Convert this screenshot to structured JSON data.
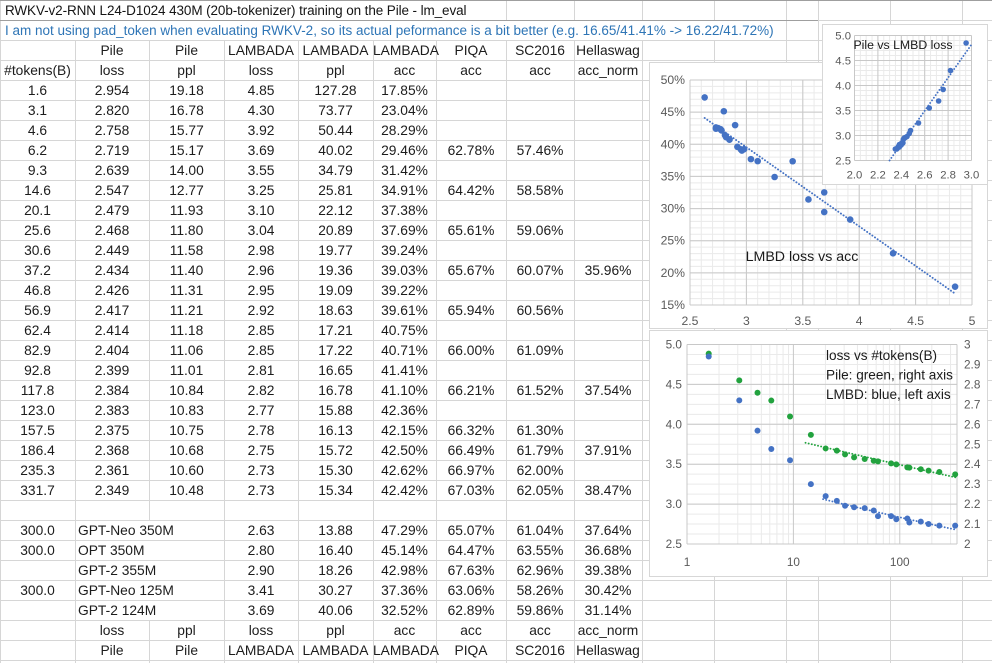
{
  "sheet": {
    "title": "RWKV-v2-RNN L24-D1024 430M (20b-tokenizer) training on the Pile - lm_eval",
    "comment": "I am not using pad_token when evaluating RWKV-2, so its actual peformance is a bit better (e.g. 16.65/41.41% -> 16.22/41.72%)",
    "header_row1": [
      "",
      "Pile",
      "Pile",
      "LAMBADA",
      "LAMBADA",
      "LAMBADA",
      "PIQA",
      "SC2016",
      "Hellaswag"
    ],
    "header_row2": [
      "#tokens(B)",
      "loss",
      "ppl",
      "loss",
      "ppl",
      "acc",
      "acc",
      "acc",
      "acc_norm"
    ],
    "rwkv_rows": [
      [
        "1.6",
        "2.954",
        "19.18",
        "4.85",
        "127.28",
        "17.85%",
        "",
        "",
        ""
      ],
      [
        "3.1",
        "2.820",
        "16.78",
        "4.30",
        "73.77",
        "23.04%",
        "",
        "",
        ""
      ],
      [
        "4.6",
        "2.758",
        "15.77",
        "3.92",
        "50.44",
        "28.29%",
        "",
        "",
        ""
      ],
      [
        "6.2",
        "2.719",
        "15.17",
        "3.69",
        "40.02",
        "29.46%",
        "62.78%",
        "57.46%",
        ""
      ],
      [
        "9.3",
        "2.639",
        "14.00",
        "3.55",
        "34.79",
        "31.42%",
        "",
        "",
        ""
      ],
      [
        "14.6",
        "2.547",
        "12.77",
        "3.25",
        "25.81",
        "34.91%",
        "64.42%",
        "58.58%",
        ""
      ],
      [
        "20.1",
        "2.479",
        "11.93",
        "3.10",
        "22.12",
        "37.38%",
        "",
        "",
        ""
      ],
      [
        "25.6",
        "2.468",
        "11.80",
        "3.04",
        "20.89",
        "37.69%",
        "65.61%",
        "59.06%",
        ""
      ],
      [
        "30.6",
        "2.449",
        "11.58",
        "2.98",
        "19.77",
        "39.24%",
        "",
        "",
        ""
      ],
      [
        "37.2",
        "2.434",
        "11.40",
        "2.96",
        "19.36",
        "39.03%",
        "65.67%",
        "60.07%",
        "35.96%"
      ],
      [
        "46.8",
        "2.426",
        "11.31",
        "2.95",
        "19.09",
        "39.22%",
        "",
        "",
        ""
      ],
      [
        "56.9",
        "2.417",
        "11.21",
        "2.92",
        "18.63",
        "39.61%",
        "65.94%",
        "60.56%",
        ""
      ],
      [
        "62.4",
        "2.414",
        "11.18",
        "2.85",
        "17.21",
        "40.75%",
        "",
        "",
        ""
      ],
      [
        "82.9",
        "2.404",
        "11.06",
        "2.85",
        "17.22",
        "40.71%",
        "66.00%",
        "61.09%",
        ""
      ],
      [
        "92.8",
        "2.399",
        "11.01",
        "2.81",
        "16.65",
        "41.41%",
        "",
        "",
        ""
      ],
      [
        "117.8",
        "2.384",
        "10.84",
        "2.82",
        "16.78",
        "41.10%",
        "66.21%",
        "61.52%",
        "37.54%"
      ],
      [
        "123.0",
        "2.383",
        "10.83",
        "2.77",
        "15.88",
        "42.36%",
        "",
        "",
        ""
      ],
      [
        "157.5",
        "2.375",
        "10.75",
        "2.78",
        "16.13",
        "42.15%",
        "66.32%",
        "61.30%",
        ""
      ],
      [
        "186.4",
        "2.368",
        "10.68",
        "2.75",
        "15.72",
        "42.50%",
        "66.49%",
        "61.79%",
        "37.91%"
      ],
      [
        "235.3",
        "2.361",
        "10.60",
        "2.73",
        "15.30",
        "42.62%",
        "66.97%",
        "62.00%",
        ""
      ],
      [
        "331.7",
        "2.349",
        "10.48",
        "2.73",
        "15.34",
        "42.42%",
        "67.03%",
        "62.05%",
        "38.47%"
      ]
    ],
    "baseline_rows": [
      [
        "300.0",
        "GPT-Neo 350M",
        "",
        "2.63",
        "13.88",
        "47.29%",
        "65.07%",
        "61.04%",
        "37.64%"
      ],
      [
        "300.0",
        "OPT 350M",
        "",
        "2.80",
        "16.40",
        "45.14%",
        "64.47%",
        "63.55%",
        "36.68%"
      ],
      [
        "",
        "GPT-2 355M",
        "",
        "2.90",
        "18.26",
        "42.98%",
        "67.63%",
        "62.96%",
        "39.38%"
      ],
      [
        "300.0",
        "GPT-Neo 125M",
        "",
        "3.41",
        "30.27",
        "37.36%",
        "63.06%",
        "58.26%",
        "30.42%"
      ],
      [
        "",
        "GPT-2 124M",
        "",
        "3.69",
        "40.06",
        "32.52%",
        "62.89%",
        "59.86%",
        "31.14%"
      ]
    ],
    "footer_row1": [
      "",
      "loss",
      "ppl",
      "loss",
      "ppl",
      "acc",
      "acc",
      "acc",
      "acc_norm"
    ],
    "footer_row2": [
      "",
      "Pile",
      "Pile",
      "LAMBADA",
      "LAMBADA",
      "LAMBADA",
      "PIQA",
      "SC2016",
      "Hellaswag"
    ]
  },
  "colors": {
    "comment_blue": "#2e75b6",
    "series_blue": "#4472c4",
    "series_green": "#22a23e",
    "axis_label_gray": "#595959"
  },
  "chart_data": [
    {
      "id": "pile-vs-lmbd-loss",
      "type": "scatter",
      "title": "Pile vs LMBD loss",
      "x_label_values": [
        2.954,
        2.82,
        2.758,
        2.719,
        2.639,
        2.547,
        2.479,
        2.468,
        2.449,
        2.434,
        2.426,
        2.417,
        2.414,
        2.404,
        2.399,
        2.384,
        2.383,
        2.375,
        2.368,
        2.361,
        2.349
      ],
      "y_label_values": [
        4.85,
        4.3,
        3.92,
        3.69,
        3.55,
        3.25,
        3.1,
        3.04,
        2.98,
        2.96,
        2.95,
        2.92,
        2.85,
        2.85,
        2.81,
        2.82,
        2.77,
        2.78,
        2.75,
        2.73,
        2.73
      ],
      "xlim": [
        2.0,
        3.0
      ],
      "ylim": [
        2.5,
        5.0
      ],
      "x_ticks": [
        {
          "v": 2.0,
          "t": "2.0"
        },
        {
          "v": 2.2,
          "t": "2.2"
        },
        {
          "v": 2.4,
          "t": "2.4"
        },
        {
          "v": 2.6,
          "t": "2.6"
        },
        {
          "v": 2.8,
          "t": "2.8"
        },
        {
          "v": 3.0,
          "t": "3.0"
        }
      ],
      "y_ticks": [
        {
          "v": 2.5,
          "t": "2.5"
        },
        {
          "v": 3.0,
          "t": "3.0"
        },
        {
          "v": 3.5,
          "t": "3.5"
        },
        {
          "v": 4.0,
          "t": "4.0"
        },
        {
          "v": 4.5,
          "t": "4.5"
        },
        {
          "v": 5.0,
          "t": "5.0"
        }
      ],
      "trendline": {
        "kind": "linear",
        "x_range": [
          2.0,
          3.0
        ],
        "style": "dotted"
      }
    },
    {
      "id": "lmbd-loss-vs-acc",
      "type": "scatter",
      "title": "LMBD loss vs acc",
      "x_label_values": [
        4.85,
        4.3,
        3.92,
        3.69,
        3.55,
        3.25,
        3.1,
        3.04,
        2.98,
        2.96,
        2.95,
        2.92,
        2.85,
        2.85,
        2.81,
        2.82,
        2.77,
        2.78,
        2.75,
        2.73,
        2.73,
        2.63,
        2.8,
        2.9,
        3.41,
        3.69
      ],
      "y_label_values": [
        17.85,
        23.04,
        28.29,
        29.46,
        31.42,
        34.91,
        37.38,
        37.69,
        39.24,
        39.03,
        39.22,
        39.61,
        40.75,
        40.71,
        41.41,
        41.1,
        42.36,
        42.15,
        42.5,
        42.62,
        42.42,
        47.29,
        45.14,
        42.98,
        37.36,
        32.52
      ],
      "xlim": [
        2.5,
        5.0
      ],
      "ylim": [
        15,
        50
      ],
      "x_ticks": [
        {
          "v": 2.5,
          "t": "2.5"
        },
        {
          "v": 3,
          "t": "3"
        },
        {
          "v": 3.5,
          "t": "3.5"
        },
        {
          "v": 4,
          "t": "4"
        },
        {
          "v": 4.5,
          "t": "4.5"
        },
        {
          "v": 5,
          "t": "5"
        }
      ],
      "y_ticks": [
        {
          "v": 15,
          "t": "15%"
        },
        {
          "v": 20,
          "t": "20%"
        },
        {
          "v": 25,
          "t": "25%"
        },
        {
          "v": 30,
          "t": "30%"
        },
        {
          "v": 35,
          "t": "35%"
        },
        {
          "v": 40,
          "t": "40%"
        },
        {
          "v": 45,
          "t": "45%"
        },
        {
          "v": 50,
          "t": "50%"
        }
      ],
      "trendline": {
        "kind": "linear",
        "x_range": [
          2.63,
          4.85
        ],
        "style": "dotted"
      }
    },
    {
      "id": "loss-vs-tokens",
      "type": "scatter",
      "title_lines": [
        "loss vs #tokens(B)",
        "Pile: green, right axis",
        "LMBD: blue, left axis"
      ],
      "x": [
        1.6,
        3.1,
        4.6,
        6.2,
        9.3,
        14.6,
        20.1,
        25.6,
        30.6,
        37.2,
        46.8,
        56.9,
        62.4,
        82.9,
        92.8,
        117.8,
        123.0,
        157.5,
        186.4,
        235.3,
        331.7
      ],
      "series": [
        {
          "name": "Pile",
          "axis": "right",
          "color_key": "series_green",
          "values": [
            2.954,
            2.82,
            2.758,
            2.719,
            2.639,
            2.547,
            2.479,
            2.468,
            2.449,
            2.434,
            2.426,
            2.417,
            2.414,
            2.404,
            2.399,
            2.384,
            2.383,
            2.375,
            2.368,
            2.361,
            2.349
          ],
          "trendline": {
            "kind": "power",
            "fit_from_x": 13,
            "x_range": [
              13,
              340
            ],
            "style": "dotted"
          }
        },
        {
          "name": "LMBD",
          "axis": "left",
          "color_key": "series_blue",
          "values": [
            4.85,
            4.3,
            3.92,
            3.69,
            3.55,
            3.25,
            3.1,
            3.04,
            2.98,
            2.96,
            2.95,
            2.92,
            2.85,
            2.85,
            2.81,
            2.82,
            2.77,
            2.78,
            2.75,
            2.73,
            2.73
          ],
          "trendline": {
            "kind": "power",
            "fit_from_x": 19,
            "x_range": [
              19,
              340
            ],
            "style": "dotted"
          }
        }
      ],
      "x_scale": "log",
      "xlim": [
        1,
        345
      ],
      "ylim_left": [
        2.5,
        5.0
      ],
      "ylim_right": [
        2,
        3
      ],
      "x_ticks": [
        {
          "v": 1,
          "t": "1"
        },
        {
          "v": 10,
          "t": "10"
        },
        {
          "v": 100,
          "t": "100"
        }
      ],
      "y_ticks_left": [
        {
          "v": 2.5,
          "t": "2.5"
        },
        {
          "v": 3.0,
          "t": "3.0"
        },
        {
          "v": 3.5,
          "t": "3.5"
        },
        {
          "v": 4.0,
          "t": "4.0"
        },
        {
          "v": 4.5,
          "t": "4.5"
        },
        {
          "v": 5.0,
          "t": "5.0"
        }
      ],
      "y_ticks_right": [
        {
          "v": 2,
          "t": "2"
        },
        {
          "v": 2.1,
          "t": "2.1"
        },
        {
          "v": 2.2,
          "t": "2.2"
        },
        {
          "v": 2.3,
          "t": "2.3"
        },
        {
          "v": 2.4,
          "t": "2.4"
        },
        {
          "v": 2.5,
          "t": "2.5"
        },
        {
          "v": 2.6,
          "t": "2.6"
        },
        {
          "v": 2.7,
          "t": "2.7"
        },
        {
          "v": 2.8,
          "t": "2.8"
        },
        {
          "v": 2.9,
          "t": "2.9"
        },
        {
          "v": 3,
          "t": "3"
        }
      ]
    }
  ]
}
